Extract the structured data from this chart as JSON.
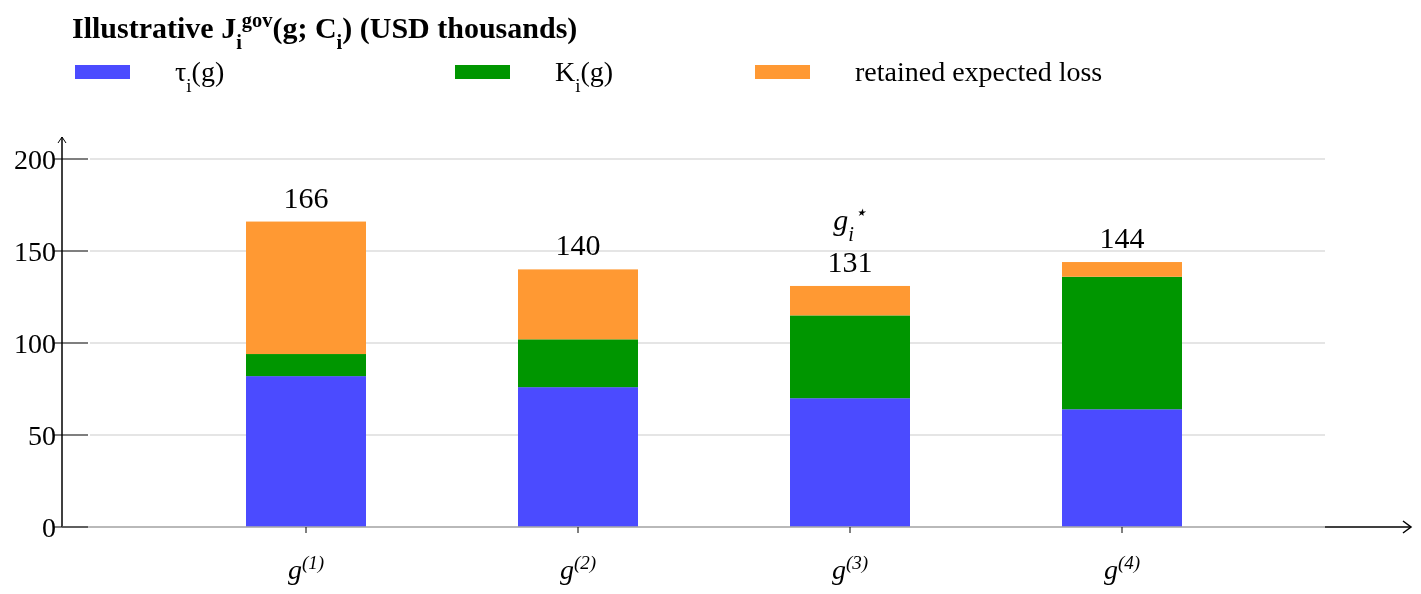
{
  "chart_data": {
    "type": "bar",
    "title": "Illustrative J$_{i}$$^{gov}$(g; C$_{i}$) (USD thousands)",
    "categories": [
      "g$^{(1)}$",
      "g$^{(2)}$",
      "g$^{(3)}$",
      "g$^{(4)}$"
    ],
    "stacked": true,
    "series": [
      {
        "name": "τ$_{i}$(g)",
        "color": "#4b4bff",
        "values": [
          82,
          76,
          70,
          64
        ]
      },
      {
        "name": "K$_{i}$(g)",
        "color": "#009600",
        "values": [
          12,
          26,
          45,
          72
        ]
      },
      {
        "name": "retained expected loss",
        "color": "#ff9933",
        "values": [
          72,
          38,
          16,
          8
        ]
      }
    ],
    "totals": [
      "166",
      "140",
      "131",
      "144"
    ],
    "annotations": [
      {
        "text": "g$_{i}$$^{⋆}$",
        "x": "g$^{(3)}$",
        "y": 131
      }
    ],
    "ylim": [
      0,
      200
    ],
    "yticks": [
      0,
      50,
      100,
      150,
      200
    ],
    "grid": "y",
    "legend": "top"
  }
}
